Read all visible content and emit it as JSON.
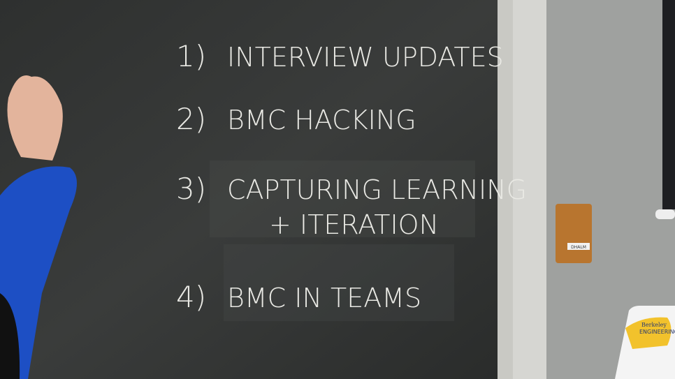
{
  "board": {
    "items": [
      {
        "number": "1)",
        "lines": [
          "INTERVIEW UPDATES"
        ]
      },
      {
        "number": "2)",
        "lines": [
          "BMC HACKING"
        ]
      },
      {
        "number": "3)",
        "lines": [
          "CAPTURING LEARNING",
          "+ ITERATION"
        ]
      },
      {
        "number": "4)",
        "lines": [
          "BMC IN TEAMS"
        ]
      }
    ]
  },
  "wall": {
    "block_label": "DHALM",
    "sign": [
      "Berkeley",
      "ENGINEERING"
    ]
  }
}
